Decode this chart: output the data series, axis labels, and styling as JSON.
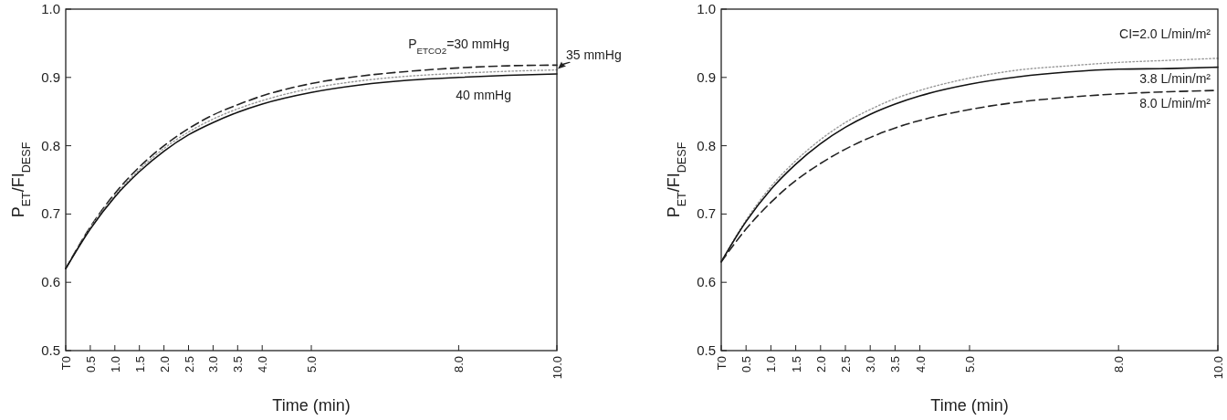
{
  "chart_data": [
    {
      "type": "line",
      "xlabel": "Time (min)",
      "ylabel": "P$_{ET}$/FI$_{DESF}$",
      "x": [
        0,
        0.5,
        1,
        1.5,
        2,
        2.5,
        3,
        3.5,
        4,
        5,
        6,
        7,
        8,
        9,
        10
      ],
      "xlim": [
        0,
        10
      ],
      "xticks": [
        {
          "value": 0,
          "label": "T0"
        },
        {
          "value": 0.5,
          "label": "0.5"
        },
        {
          "value": 1,
          "label": "1.0"
        },
        {
          "value": 1.5,
          "label": "1.5"
        },
        {
          "value": 2,
          "label": "2.0"
        },
        {
          "value": 2.5,
          "label": "2.5"
        },
        {
          "value": 3,
          "label": "3.0"
        },
        {
          "value": 3.5,
          "label": "3.5"
        },
        {
          "value": 4,
          "label": "4.0"
        },
        {
          "value": 5,
          "label": "5.0"
        },
        {
          "value": 8,
          "label": "8.0"
        },
        {
          "value": 10,
          "label": "10.0"
        }
      ],
      "ylim": [
        0.5,
        1.0
      ],
      "yticks": [
        {
          "value": 0.5,
          "label": "0.5"
        },
        {
          "value": 0.6,
          "label": "0.6"
        },
        {
          "value": 0.7,
          "label": "0.7"
        },
        {
          "value": 0.8,
          "label": "0.8"
        },
        {
          "value": 0.9,
          "label": "0.9"
        },
        {
          "value": 1.0,
          "label": "1.0"
        }
      ],
      "grid": false,
      "series": [
        {
          "name": "P$_{ETCO2}$=30 mmHg",
          "color": "#222222",
          "line_style": "dashed",
          "values": [
            0.62,
            0.681,
            0.73,
            0.769,
            0.8,
            0.825,
            0.845,
            0.86,
            0.873,
            0.891,
            0.902,
            0.909,
            0.914,
            0.917,
            0.918
          ]
        },
        {
          "name": "35 mmHg",
          "color": "#999999",
          "line_style": "dotted",
          "values": [
            0.62,
            0.68,
            0.727,
            0.765,
            0.796,
            0.82,
            0.839,
            0.854,
            0.866,
            0.884,
            0.895,
            0.902,
            0.906,
            0.909,
            0.911
          ]
        },
        {
          "name": "40 mmHg",
          "color": "#111111",
          "line_style": "solid",
          "values": [
            0.62,
            0.678,
            0.725,
            0.762,
            0.792,
            0.816,
            0.834,
            0.849,
            0.861,
            0.878,
            0.889,
            0.896,
            0.9,
            0.903,
            0.905
          ]
        }
      ]
    },
    {
      "type": "line",
      "xlabel": "Time (min)",
      "ylabel": "P$_{ET}$/FI$_{DESF}$",
      "x": [
        0,
        0.5,
        1,
        1.5,
        2,
        2.5,
        3,
        3.5,
        4,
        5,
        6,
        7,
        8,
        9,
        10
      ],
      "xlim": [
        0,
        10
      ],
      "xticks": [
        {
          "value": 0,
          "label": "T0"
        },
        {
          "value": 0.5,
          "label": "0.5"
        },
        {
          "value": 1,
          "label": "1.0"
        },
        {
          "value": 1.5,
          "label": "1.5"
        },
        {
          "value": 2,
          "label": "2.0"
        },
        {
          "value": 2.5,
          "label": "2.5"
        },
        {
          "value": 3,
          "label": "3.0"
        },
        {
          "value": 3.5,
          "label": "3.5"
        },
        {
          "value": 4,
          "label": "4.0"
        },
        {
          "value": 5,
          "label": "5.0"
        },
        {
          "value": 8,
          "label": "8.0"
        },
        {
          "value": 10,
          "label": "10.0"
        }
      ],
      "ylim": [
        0.5,
        1.0
      ],
      "yticks": [
        {
          "value": 0.5,
          "label": "0.5"
        },
        {
          "value": 0.6,
          "label": "0.6"
        },
        {
          "value": 0.7,
          "label": "0.7"
        },
        {
          "value": 0.8,
          "label": "0.8"
        },
        {
          "value": 0.9,
          "label": "0.9"
        },
        {
          "value": 1.0,
          "label": "1.0"
        }
      ],
      "grid": false,
      "series": [
        {
          "name": "CI=2.0 L/min/m²",
          "color": "#999999",
          "line_style": "dotted",
          "values": [
            0.63,
            0.691,
            0.74,
            0.778,
            0.809,
            0.834,
            0.853,
            0.869,
            0.881,
            0.899,
            0.911,
            0.917,
            0.922,
            0.925,
            0.928
          ]
        },
        {
          "name": "3.8 L/min/m²",
          "color": "#111111",
          "line_style": "solid",
          "values": [
            0.63,
            0.689,
            0.736,
            0.773,
            0.803,
            0.827,
            0.846,
            0.861,
            0.873,
            0.89,
            0.901,
            0.908,
            0.912,
            0.913,
            0.915
          ]
        },
        {
          "name": "8.0 L/min/m²",
          "color": "#222222",
          "line_style": "dashed",
          "values": [
            0.63,
            0.678,
            0.717,
            0.749,
            0.774,
            0.795,
            0.812,
            0.826,
            0.837,
            0.853,
            0.864,
            0.871,
            0.876,
            0.879,
            0.881
          ]
        }
      ]
    }
  ]
}
